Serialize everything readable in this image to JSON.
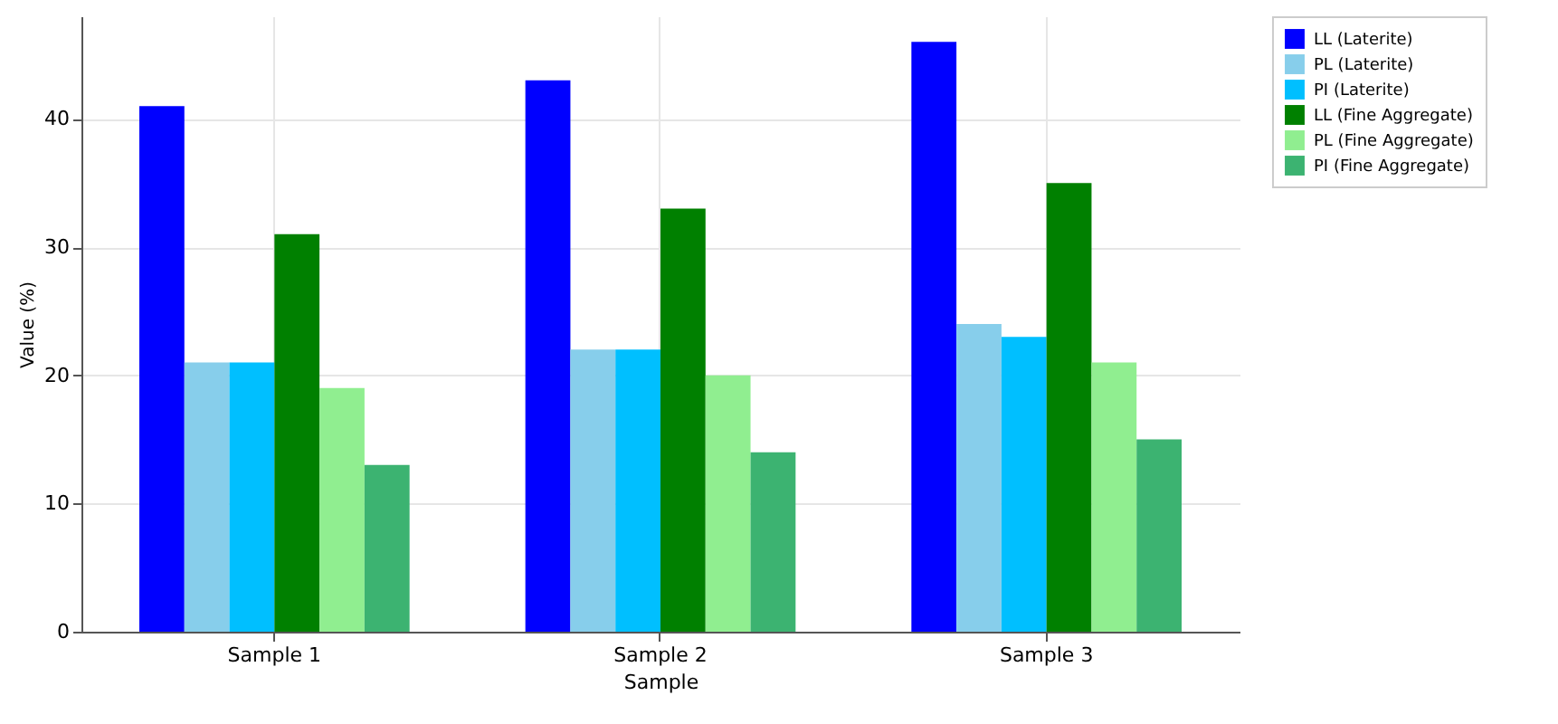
{
  "chart_data": {
    "type": "bar",
    "xlabel": "Sample",
    "ylabel": "Value (%)",
    "categories": [
      "Sample 1",
      "Sample 2",
      "Sample 3"
    ],
    "series": [
      {
        "name": "LL (Laterite)",
        "color": "#0000ff",
        "values": [
          41,
          43,
          46
        ]
      },
      {
        "name": "PL (Laterite)",
        "color": "#87ceeb",
        "values": [
          21,
          22,
          24
        ]
      },
      {
        "name": "PI (Laterite)",
        "color": "#00bfff",
        "values": [
          21,
          22,
          23
        ]
      },
      {
        "name": "LL (Fine Aggregate)",
        "color": "#008000",
        "values": [
          31,
          33,
          35
        ]
      },
      {
        "name": "PL (Fine Aggregate)",
        "color": "#90ee90",
        "values": [
          19,
          20,
          21
        ]
      },
      {
        "name": "PI (Fine Aggregate)",
        "color": "#3cb371",
        "values": [
          13,
          14,
          15
        ]
      }
    ],
    "ylim": [
      0,
      48
    ],
    "yticks": [
      0,
      10,
      20,
      30,
      40
    ],
    "grid": true,
    "legend": "top right"
  }
}
